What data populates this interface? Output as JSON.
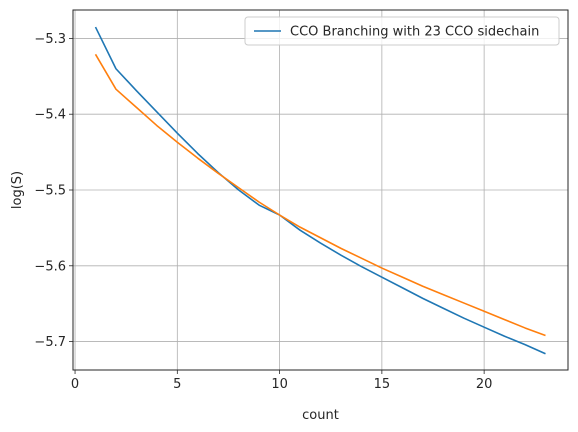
{
  "chart_data": {
    "type": "line",
    "xlabel": "count",
    "ylabel": "log(S)",
    "xlim": [
      -0.1,
      24.1
    ],
    "ylim": [
      -5.7375,
      -5.2625
    ],
    "xticks": [
      0,
      5,
      10,
      15,
      20
    ],
    "yticks": [
      -5.7,
      -5.6,
      -5.5,
      -5.4,
      -5.3
    ],
    "xtick_labels": [
      "0",
      "5",
      "10",
      "15",
      "20"
    ],
    "ytick_labels": [
      "−5.7",
      "−5.6",
      "−5.5",
      "−5.4",
      "−5.3"
    ],
    "grid": true,
    "legend_position": "upper-right",
    "x": [
      1,
      2,
      3,
      4,
      5,
      6,
      7,
      8,
      9,
      10,
      11,
      12,
      13,
      14,
      15,
      16,
      17,
      18,
      19,
      20,
      21,
      22,
      23
    ],
    "series": [
      {
        "name": "CCO Branching with 23 CCO sidechain",
        "color": "#1f77b4",
        "values": [
          -5.285,
          -5.34,
          -5.369,
          -5.397,
          -5.425,
          -5.452,
          -5.477,
          -5.5,
          -5.52,
          -5.533,
          -5.553,
          -5.57,
          -5.586,
          -5.601,
          -5.615,
          -5.629,
          -5.643,
          -5.656,
          -5.669,
          -5.681,
          -5.693,
          -5.704,
          -5.716
        ]
      },
      {
        "name": "",
        "color": "#ff7f0e",
        "values": [
          -5.321,
          -5.367,
          -5.391,
          -5.415,
          -5.437,
          -5.458,
          -5.478,
          -5.497,
          -5.516,
          -5.533,
          -5.549,
          -5.563,
          -5.577,
          -5.59,
          -5.603,
          -5.615,
          -5.627,
          -5.638,
          -5.649,
          -5.66,
          -5.671,
          -5.682,
          -5.692
        ]
      }
    ]
  }
}
